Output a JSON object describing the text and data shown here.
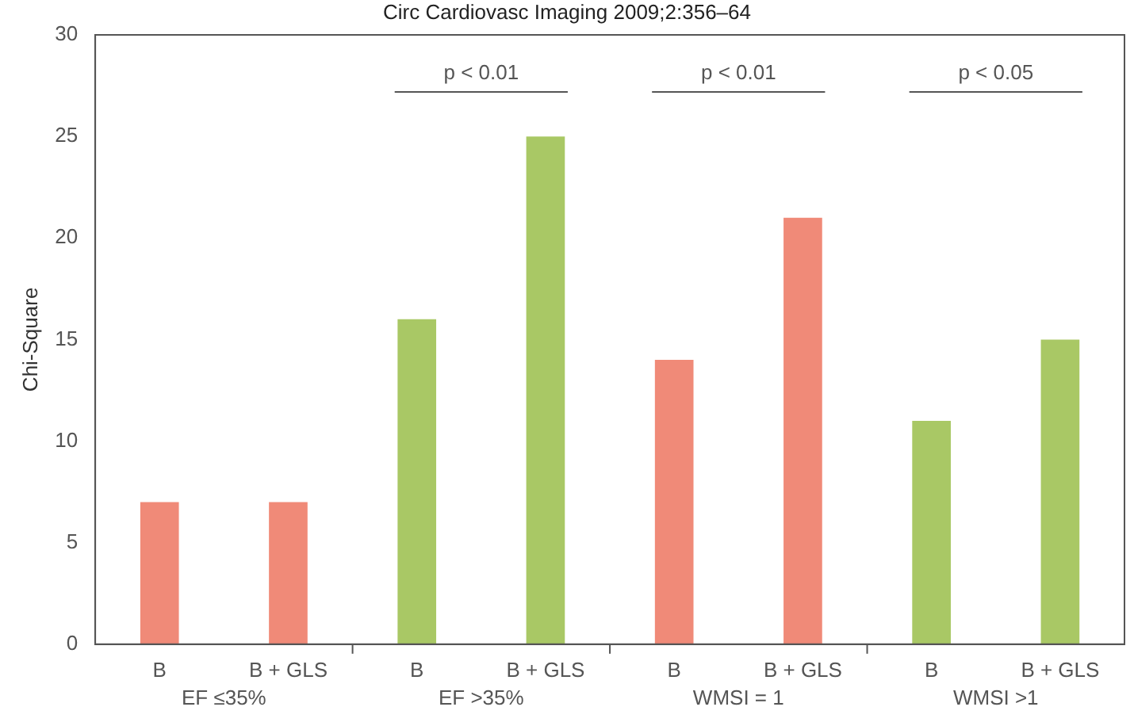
{
  "chart_data": {
    "type": "bar",
    "title": "Circ Cardiovasc Imaging 2009;2:356–64",
    "ylabel": "Chi-Square",
    "categories": [
      "B",
      "B + GLS",
      "B",
      "B + GLS",
      "B",
      "B + GLS",
      "B",
      "B + GLS"
    ],
    "values": [
      7,
      7,
      16,
      25,
      14,
      21,
      11,
      15
    ],
    "colors": [
      "#f08a78",
      "#f08a78",
      "#a9c865",
      "#a9c865",
      "#f08a78",
      "#f08a78",
      "#a9c865",
      "#a9c865"
    ],
    "ylim": [
      0,
      30
    ],
    "yticks": [
      0,
      5,
      10,
      15,
      20,
      25,
      30
    ],
    "grid": false,
    "legend": false,
    "annotations": [
      "EF ≤35%",
      "EF >35%",
      "WMSI = 1",
      "WMSI >1",
      "p < 0.01",
      "p < 0.01",
      "p < 0.05"
    ]
  }
}
